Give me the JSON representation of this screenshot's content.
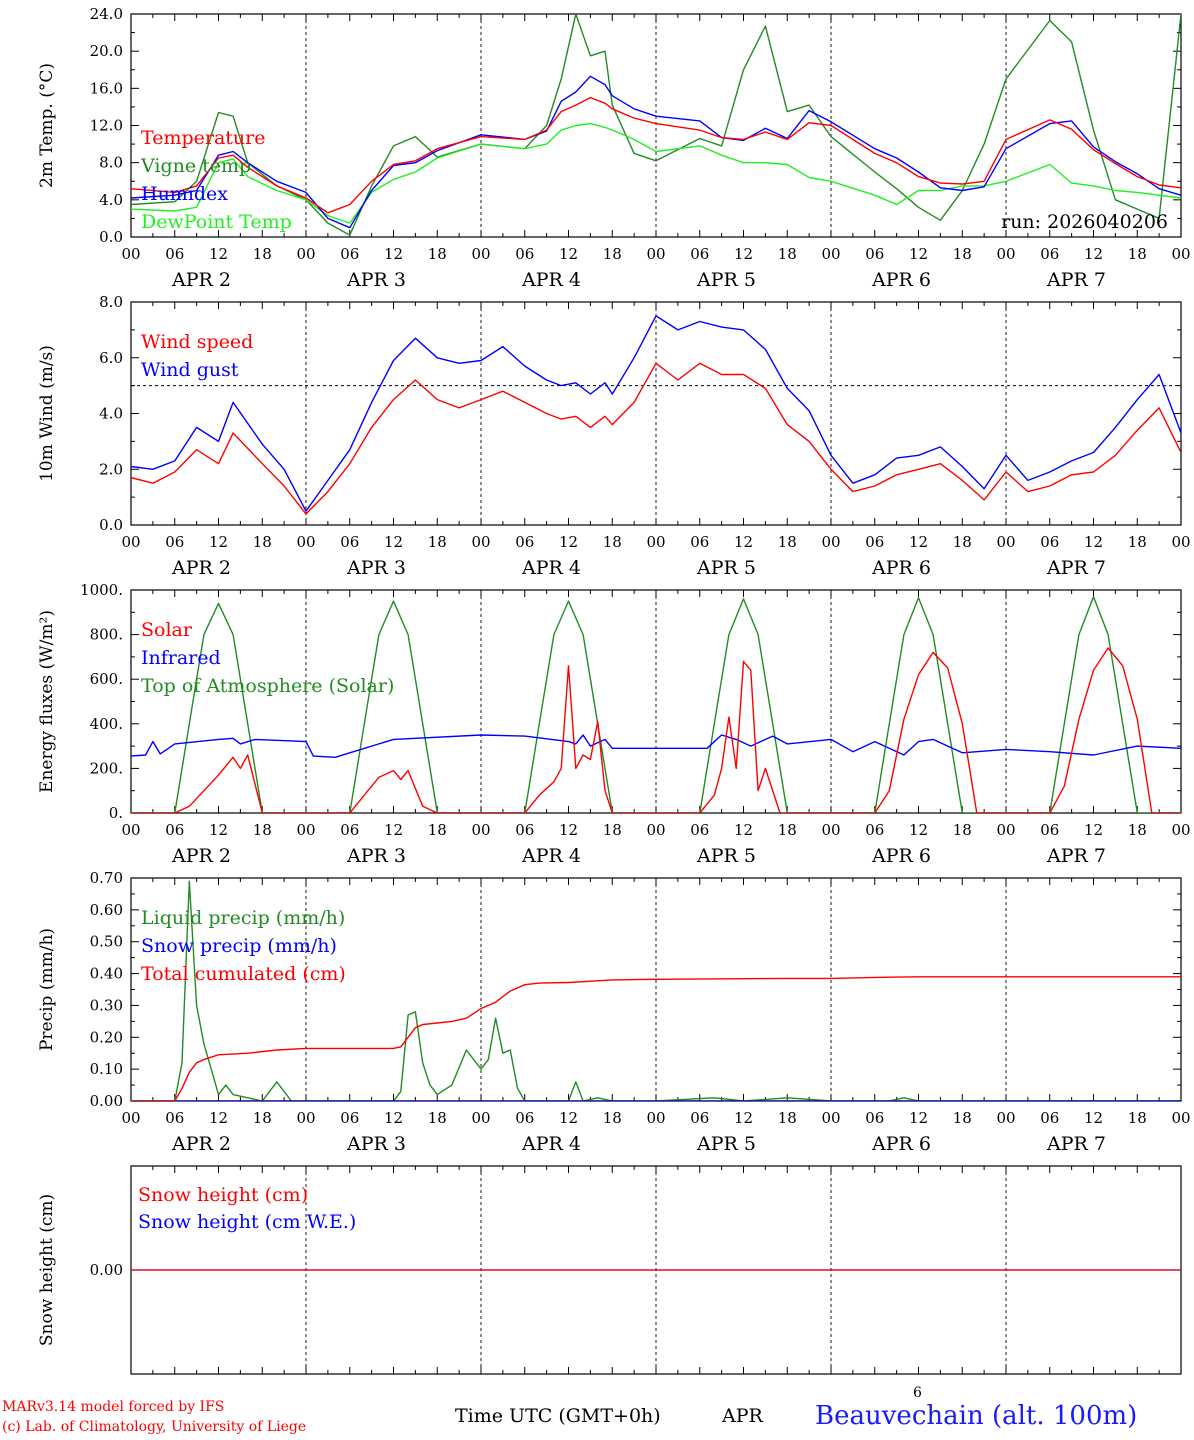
{
  "footer": {
    "model_line1": "MARv3.14 model forced by IFS",
    "model_line2": "(c) Lab. of Climatology, University of Liege",
    "time_label": "Time UTC (GMT+0h)",
    "month_label": "APR",
    "day_marker": "6",
    "station": "Beauvechain (alt. 100m)"
  },
  "colors": {
    "red": "#ff0000",
    "green": "#228b22",
    "blue": "#0000ff",
    "lime": "#22ee22",
    "station": "#1a1aff"
  },
  "chart_data": [
    {
      "type": "line",
      "ylabel": "2m Temp. (°C)",
      "ylim": [
        0,
        24
      ],
      "yticks": [
        "0.0",
        "4.0",
        "8.0",
        "12.0",
        "16.0",
        "20.0",
        "24.0"
      ],
      "xticks": [
        "00",
        "06",
        "12",
        "18",
        "00",
        "06",
        "12",
        "18",
        "00",
        "06",
        "12",
        "18",
        "00",
        "06",
        "12",
        "18",
        "00",
        "06",
        "12",
        "18",
        "00",
        "06",
        "12",
        "18",
        "00"
      ],
      "days": [
        "APR 2",
        "APR 3",
        "APR 4",
        "APR 5",
        "APR 6",
        "APR 7"
      ],
      "annotation": "run: 2026040206",
      "x_hours": [
        0,
        6,
        9,
        12,
        14,
        16,
        20,
        24,
        27,
        30,
        33,
        36,
        39,
        42,
        48,
        54,
        57,
        59,
        61,
        63,
        65,
        66,
        69,
        72,
        78,
        81,
        84,
        87,
        90,
        93,
        96,
        102,
        105,
        108,
        111,
        114,
        117,
        120,
        126,
        129,
        132,
        135,
        138,
        141,
        144
      ],
      "series": [
        {
          "name": "Temperature",
          "color": "red",
          "values": [
            5.2,
            4.8,
            5.5,
            8.5,
            8.8,
            7.5,
            5.5,
            4.2,
            2.6,
            3.5,
            6.0,
            7.8,
            8.2,
            9.5,
            10.8,
            10.5,
            11.5,
            13.5,
            14.2,
            15.0,
            14.4,
            13.8,
            12.8,
            12.2,
            11.5,
            10.7,
            10.5,
            11.3,
            10.5,
            12.3,
            12.0,
            9.0,
            8.0,
            6.5,
            5.8,
            5.7,
            6.0,
            10.5,
            12.6,
            11.6,
            9.4,
            7.9,
            6.5,
            5.6,
            5.3
          ]
        },
        {
          "name": "Vigne temp",
          "color": "green",
          "values": [
            3.5,
            3.8,
            6.0,
            13.4,
            13.0,
            8.0,
            5.5,
            4.0,
            1.5,
            0.2,
            5.5,
            9.8,
            10.8,
            8.6,
            10.0,
            9.5,
            12.0,
            17.0,
            24.0,
            19.5,
            20.0,
            14.2,
            9.0,
            8.2,
            10.6,
            9.8,
            18.0,
            22.7,
            13.5,
            14.2,
            10.8,
            7.0,
            5.2,
            3.2,
            1.8,
            5.0,
            10.0,
            17.0,
            23.3,
            21.0,
            11.5,
            4.0,
            3.0,
            2.0,
            24.0
          ]
        },
        {
          "name": "Humidex",
          "color": "blue",
          "values": [
            4.2,
            4.5,
            5.0,
            8.8,
            9.2,
            8.0,
            6.0,
            4.8,
            2.0,
            1.0,
            5.0,
            7.7,
            8.0,
            9.3,
            11.0,
            10.5,
            11.4,
            14.6,
            15.6,
            17.3,
            16.4,
            15.2,
            13.8,
            13.0,
            12.5,
            10.7,
            10.4,
            11.7,
            10.6,
            13.6,
            12.4,
            9.5,
            8.5,
            7.0,
            5.3,
            5.0,
            5.4,
            9.5,
            12.2,
            12.5,
            9.7,
            8.1,
            6.8,
            5.2,
            4.5
          ]
        },
        {
          "name": "DewPoint Temp",
          "color": "lime",
          "values": [
            3.0,
            2.8,
            3.2,
            8.0,
            8.4,
            6.5,
            5.0,
            4.0,
            2.3,
            1.5,
            4.8,
            6.2,
            7.0,
            8.5,
            10.0,
            9.5,
            10.0,
            11.5,
            12.0,
            12.2,
            11.8,
            11.5,
            10.5,
            9.2,
            9.8,
            8.8,
            8.0,
            8.0,
            7.8,
            6.4,
            6.0,
            4.5,
            3.5,
            5.0,
            5.0,
            5.5,
            5.5,
            6.0,
            7.8,
            5.8,
            5.5,
            5.0,
            4.8,
            4.5,
            4.2
          ]
        }
      ]
    },
    {
      "type": "line",
      "ylabel": "10m Wind (m/s)",
      "ylim": [
        0,
        8
      ],
      "yticks": [
        "0.0",
        "2.0",
        "4.0",
        "6.0",
        "8.0"
      ],
      "xticks": [
        "00",
        "06",
        "12",
        "18",
        "00",
        "06",
        "12",
        "18",
        "00",
        "06",
        "12",
        "18",
        "00",
        "06",
        "12",
        "18",
        "00",
        "06",
        "12",
        "18",
        "00",
        "06",
        "12",
        "18",
        "00"
      ],
      "days": [
        "APR 2",
        "APR 3",
        "APR 4",
        "APR 5",
        "APR 6",
        "APR 7"
      ],
      "threshold": 5,
      "x_hours": [
        0,
        3,
        6,
        9,
        12,
        14,
        18,
        21,
        24,
        27,
        30,
        33,
        36,
        39,
        42,
        45,
        48,
        51,
        54,
        57,
        59,
        61,
        63,
        65,
        66,
        69,
        72,
        75,
        78,
        81,
        84,
        87,
        90,
        93,
        96,
        99,
        102,
        105,
        108,
        111,
        114,
        117,
        120,
        123,
        126,
        129,
        132,
        135,
        138,
        141,
        144
      ],
      "series": [
        {
          "name": "Wind speed",
          "color": "red",
          "values": [
            1.7,
            1.5,
            1.9,
            2.7,
            2.2,
            3.3,
            2.2,
            1.4,
            0.4,
            1.2,
            2.2,
            3.5,
            4.5,
            5.2,
            4.5,
            4.2,
            4.5,
            4.8,
            4.4,
            4.0,
            3.8,
            3.9,
            3.5,
            3.9,
            3.6,
            4.4,
            5.8,
            5.2,
            5.8,
            5.4,
            5.4,
            4.9,
            3.6,
            3.0,
            2.0,
            1.2,
            1.4,
            1.8,
            2.0,
            2.2,
            1.6,
            0.9,
            1.9,
            1.2,
            1.4,
            1.8,
            1.9,
            2.5,
            3.4,
            4.2,
            2.6
          ]
        },
        {
          "name": "Wind gust",
          "color": "blue",
          "values": [
            2.1,
            2.0,
            2.3,
            3.5,
            3.0,
            4.4,
            2.9,
            2.0,
            0.5,
            1.6,
            2.7,
            4.4,
            5.9,
            6.7,
            6.0,
            5.8,
            5.9,
            6.4,
            5.7,
            5.2,
            5.0,
            5.1,
            4.7,
            5.1,
            4.7,
            6.0,
            7.5,
            7.0,
            7.3,
            7.1,
            7.0,
            6.3,
            4.9,
            4.1,
            2.5,
            1.5,
            1.8,
            2.4,
            2.5,
            2.8,
            2.1,
            1.3,
            2.5,
            1.6,
            1.9,
            2.3,
            2.6,
            3.5,
            4.5,
            5.4,
            3.3
          ]
        }
      ]
    },
    {
      "type": "line",
      "ylabel": "Energy fluxes (W/m²)",
      "ylim": [
        0,
        1000
      ],
      "yticks": [
        "0.",
        "200.",
        "400.",
        "600.",
        "800.",
        "1000."
      ],
      "xticks": [
        "00",
        "06",
        "12",
        "18",
        "00",
        "06",
        "12",
        "18",
        "00",
        "06",
        "12",
        "18",
        "00",
        "06",
        "12",
        "18",
        "00",
        "06",
        "12",
        "18",
        "00",
        "06",
        "12",
        "18",
        "00"
      ],
      "days": [
        "APR 2",
        "APR 3",
        "APR 4",
        "APR 5",
        "APR 6",
        "APR 7"
      ],
      "solar_x_hours": [
        0,
        6,
        8,
        10,
        12,
        14,
        15,
        16,
        18,
        24,
        30,
        32,
        34,
        36,
        37,
        38,
        40,
        42,
        48,
        54,
        56,
        58,
        59,
        60,
        61,
        62,
        63,
        64,
        65,
        66,
        68,
        72,
        78,
        80,
        81,
        82,
        83,
        84,
        85,
        86,
        87,
        89,
        90,
        96,
        102,
        104,
        106,
        108,
        110,
        112,
        114,
        116,
        120,
        126,
        128,
        130,
        132,
        134,
        136,
        138,
        140,
        144
      ],
      "infrared_x_hours": [
        0,
        2,
        3,
        4,
        6,
        12,
        14,
        15,
        17,
        24,
        25,
        28,
        30,
        36,
        48,
        54,
        60,
        61,
        62,
        63,
        65,
        66,
        72,
        79,
        81,
        83,
        85,
        88,
        90,
        96,
        99,
        102,
        106,
        108,
        110,
        114,
        120,
        126,
        132,
        138,
        144
      ],
      "toa_x_hours": [
        0,
        6,
        8,
        10,
        12,
        14,
        16,
        18,
        24,
        30,
        32,
        34,
        36,
        38,
        40,
        42,
        48,
        54,
        56,
        58,
        60,
        62,
        64,
        66,
        72,
        78,
        80,
        82,
        84,
        86,
        88,
        90,
        96,
        102,
        104,
        106,
        108,
        110,
        112,
        114,
        120,
        126,
        128,
        130,
        132,
        134,
        136,
        138,
        144
      ],
      "series": [
        {
          "name": "Solar",
          "color": "red",
          "values": [
            0,
            0,
            30,
            100,
            170,
            250,
            200,
            260,
            0,
            0,
            0,
            80,
            160,
            190,
            150,
            190,
            30,
            0,
            0,
            0,
            80,
            140,
            200,
            660,
            200,
            260,
            240,
            410,
            100,
            0,
            0,
            0,
            0,
            80,
            200,
            430,
            200,
            680,
            640,
            100,
            200,
            0,
            0,
            0,
            0,
            100,
            420,
            620,
            720,
            650,
            400,
            0,
            0,
            0,
            120,
            420,
            640,
            740,
            660,
            420,
            0,
            0
          ]
        },
        {
          "name": "Infrared",
          "color": "blue",
          "values": [
            255,
            260,
            320,
            265,
            310,
            330,
            335,
            310,
            330,
            320,
            255,
            250,
            270,
            330,
            350,
            345,
            320,
            310,
            350,
            300,
            330,
            290,
            290,
            290,
            350,
            330,
            300,
            345,
            310,
            330,
            275,
            320,
            260,
            320,
            330,
            270,
            285,
            275,
            260,
            300,
            290
          ]
        },
        {
          "name": "Top of Atmosphere (Solar)",
          "color": "green",
          "values": [
            0,
            0,
            400,
            800,
            940,
            800,
            400,
            0,
            0,
            0,
            400,
            800,
            950,
            800,
            400,
            0,
            0,
            0,
            400,
            800,
            950,
            800,
            400,
            0,
            0,
            0,
            400,
            800,
            960,
            800,
            400,
            0,
            0,
            0,
            400,
            800,
            965,
            800,
            400,
            0,
            0,
            0,
            400,
            800,
            970,
            800,
            400,
            0,
            0
          ]
        }
      ]
    },
    {
      "type": "line",
      "ylabel": "Precip (mm/h)",
      "ylim": [
        0,
        0.7
      ],
      "yticks": [
        "0.00",
        "0.10",
        "0.20",
        "0.30",
        "0.40",
        "0.50",
        "0.60",
        "0.70"
      ],
      "xticks": [
        "00",
        "06",
        "12",
        "18",
        "00",
        "06",
        "12",
        "18",
        "00",
        "06",
        "12",
        "18",
        "00",
        "06",
        "12",
        "18",
        "00",
        "06",
        "12",
        "18",
        "00",
        "06",
        "12",
        "18",
        "00"
      ],
      "days": [
        "APR 2",
        "APR 3",
        "APR 4",
        "APR 5",
        "APR 6",
        "APR 7"
      ],
      "liquid_x_hours": [
        0,
        6,
        7,
        8,
        9,
        10,
        11,
        12,
        13,
        14,
        16,
        18,
        20,
        22,
        24,
        30,
        36,
        37,
        38,
        39,
        40,
        41,
        42,
        44,
        46,
        48,
        49,
        50,
        51,
        52,
        53,
        54,
        56,
        58,
        60,
        61,
        62,
        64,
        66,
        72,
        80,
        84,
        90,
        96,
        102,
        104,
        106,
        108,
        110,
        114,
        144
      ],
      "snow_x_hours": [
        0,
        144
      ],
      "total_x_hours": [
        0,
        6,
        7,
        8,
        9,
        10,
        12,
        16,
        20,
        24,
        30,
        36,
        37,
        38,
        39,
        40,
        42,
        44,
        46,
        48,
        50,
        52,
        54,
        56,
        60,
        66,
        72,
        90,
        96,
        102,
        108,
        120,
        144
      ],
      "series": [
        {
          "name": "Liquid precip (mm/h)",
          "color": "green",
          "values": [
            0,
            0,
            0.12,
            0.69,
            0.3,
            0.18,
            0.1,
            0.02,
            0.05,
            0.02,
            0.01,
            0.0,
            0.06,
            0.0,
            0.0,
            0.0,
            0.0,
            0.03,
            0.27,
            0.28,
            0.12,
            0.05,
            0.02,
            0.05,
            0.16,
            0.1,
            0.13,
            0.26,
            0.15,
            0.16,
            0.04,
            0.0,
            0.0,
            0.0,
            0.0,
            0.06,
            0.0,
            0.01,
            0.0,
            0.0,
            0.01,
            0.0,
            0.01,
            0.0,
            0.0,
            0.0,
            0.01,
            0.0,
            0.0,
            0.0,
            0.0
          ]
        },
        {
          "name": "Snow precip (mm/h)",
          "color": "blue",
          "values": [
            0,
            0
          ]
        },
        {
          "name": "Total cumulated (cm)",
          "color": "red",
          "values": [
            0,
            0,
            0.04,
            0.09,
            0.12,
            0.13,
            0.145,
            0.15,
            0.16,
            0.165,
            0.165,
            0.165,
            0.17,
            0.2,
            0.23,
            0.24,
            0.245,
            0.25,
            0.26,
            0.29,
            0.31,
            0.345,
            0.365,
            0.37,
            0.372,
            0.38,
            0.382,
            0.385,
            0.385,
            0.388,
            0.39,
            0.39,
            0.39
          ]
        }
      ]
    },
    {
      "type": "line",
      "ylabel": "Snow height (cm)",
      "yticks": [
        "0.00"
      ],
      "series": [
        {
          "name": "Snow height (cm)",
          "color": "red",
          "values": [
            0,
            0
          ]
        },
        {
          "name": "Snow height (cm W.E.)",
          "color": "blue",
          "values": [
            0,
            0
          ]
        }
      ]
    }
  ]
}
